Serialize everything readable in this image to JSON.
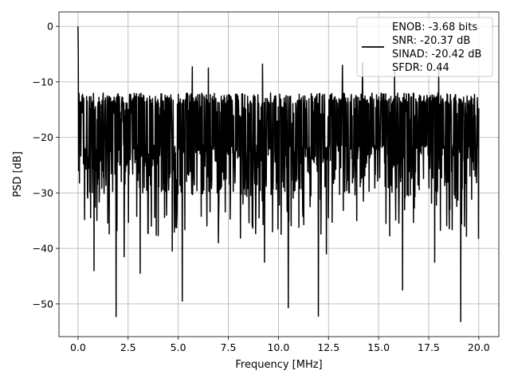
{
  "chart_data": {
    "type": "line",
    "title": "",
    "xlabel": "Frequency [MHz]",
    "ylabel": "PSD [dB]",
    "xlim": [
      -0.95,
      21.0
    ],
    "ylim": [
      -55.9,
      2.6
    ],
    "x_ticks": [
      0.0,
      2.5,
      5.0,
      7.5,
      10.0,
      12.5,
      15.0,
      17.5,
      20.0
    ],
    "x_tick_labels": [
      "0.0",
      "2.5",
      "5.0",
      "7.5",
      "10.0",
      "12.5",
      "15.0",
      "17.5",
      "20.0"
    ],
    "y_ticks": [
      0,
      -10,
      -20,
      -30,
      -40,
      -50
    ],
    "y_tick_labels": [
      "0",
      "−10",
      "−20",
      "−30",
      "−40",
      "−50"
    ],
    "grid": true,
    "legend_position": "top-right",
    "line_color": "#000000",
    "legend": {
      "lines": [
        "ENOB: -3.68 bits",
        "SNR: -20.37 dB",
        "SINAD: -20.42 dB",
        "SFDR: 0.44"
      ]
    },
    "series": [
      {
        "x_start": 0.0,
        "x_end": 20.0,
        "noise_floor_mean": -20.4,
        "noise_floor_upper": -12.0,
        "peak": {
          "x": 0.0,
          "y": 0.0
        },
        "deep_dips": [
          {
            "x": 1.9,
            "y": -52.3
          },
          {
            "x": 3.1,
            "y": -44.5
          },
          {
            "x": 2.3,
            "y": -41.5
          },
          {
            "x": 4.7,
            "y": -40.5
          },
          {
            "x": 5.2,
            "y": -49.5
          },
          {
            "x": 7.0,
            "y": -39.0
          },
          {
            "x": 9.3,
            "y": -42.5
          },
          {
            "x": 10.5,
            "y": -50.7
          },
          {
            "x": 12.0,
            "y": -52.2
          },
          {
            "x": 12.4,
            "y": -41.0
          },
          {
            "x": 16.2,
            "y": -47.5
          },
          {
            "x": 17.8,
            "y": -42.5
          },
          {
            "x": 19.1,
            "y": -53.2
          },
          {
            "x": 0.8,
            "y": -44.0
          }
        ],
        "high_spikes": [
          {
            "x": 5.7,
            "y": -7.3
          },
          {
            "x": 6.5,
            "y": -7.5
          },
          {
            "x": 9.2,
            "y": -6.8
          },
          {
            "x": 13.2,
            "y": -7.0
          },
          {
            "x": 14.2,
            "y": -6.5
          },
          {
            "x": 15.8,
            "y": -8.0
          },
          {
            "x": 18.0,
            "y": -7.8
          }
        ]
      }
    ]
  }
}
